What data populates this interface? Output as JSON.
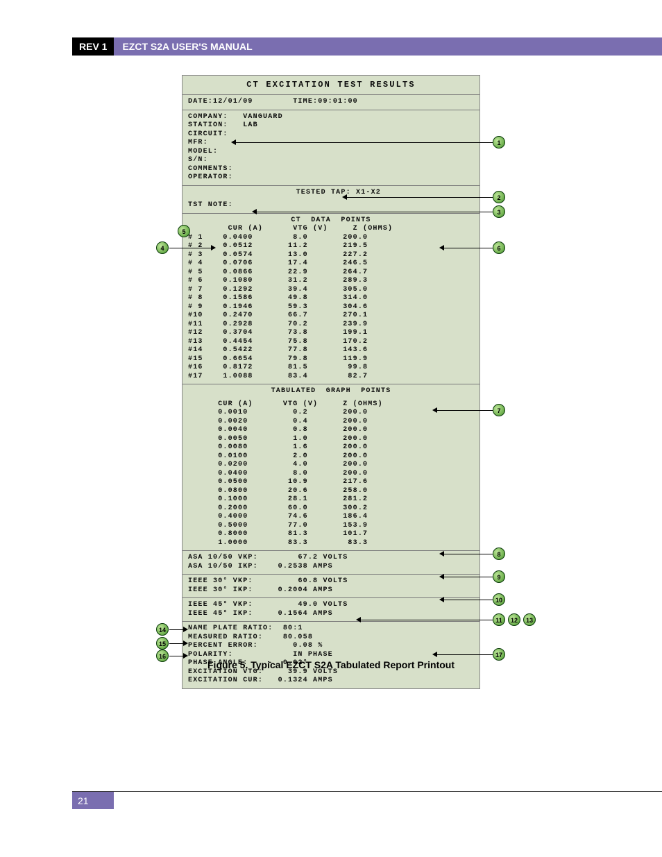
{
  "header": {
    "rev": "REV 1",
    "title": "EZCT S2A USER'S MANUAL"
  },
  "page_number": "21",
  "caption": "Figure 5. Typical EZCT S2A Tabulated Report Printout",
  "printout": {
    "title": "CT  EXCITATION  TEST  RESULTS",
    "date_label": "DATE:",
    "date_value": "12/01/09",
    "time_label": "TIME:",
    "time_value": "09:01:00",
    "company_label": "COMPANY:",
    "company_value": "VANGUARD",
    "station_label": "STATION:",
    "station_value": "LAB",
    "circuit_label": "CIRCUIT:",
    "mfr_label": "MFR:",
    "model_label": "MODEL:",
    "sn_label": "S/N:",
    "comments_label": "COMMENTS:",
    "operator_label": "OPERATOR:",
    "tested_tap_label": "TESTED TAP:",
    "tested_tap_value": "X1-X2",
    "tst_note_label": "TST NOTE:",
    "datapoints_header": "CT  DATA  POINTS",
    "col_cur": "CUR (A)",
    "col_vtg": "VTG (V)",
    "col_z": "Z (OHMS)",
    "data_points": [
      {
        "n": "# 1",
        "cur": "0.0400",
        "vtg": "8.0",
        "z": "200.0"
      },
      {
        "n": "# 2",
        "cur": "0.0512",
        "vtg": "11.2",
        "z": "219.5"
      },
      {
        "n": "# 3",
        "cur": "0.0574",
        "vtg": "13.0",
        "z": "227.2"
      },
      {
        "n": "# 4",
        "cur": "0.0706",
        "vtg": "17.4",
        "z": "246.5"
      },
      {
        "n": "# 5",
        "cur": "0.0866",
        "vtg": "22.9",
        "z": "264.7"
      },
      {
        "n": "# 6",
        "cur": "0.1080",
        "vtg": "31.2",
        "z": "289.3"
      },
      {
        "n": "# 7",
        "cur": "0.1292",
        "vtg": "39.4",
        "z": "305.0"
      },
      {
        "n": "# 8",
        "cur": "0.1586",
        "vtg": "49.8",
        "z": "314.0"
      },
      {
        "n": "# 9",
        "cur": "0.1946",
        "vtg": "59.3",
        "z": "304.6"
      },
      {
        "n": "#10",
        "cur": "0.2470",
        "vtg": "66.7",
        "z": "270.1"
      },
      {
        "n": "#11",
        "cur": "0.2928",
        "vtg": "70.2",
        "z": "239.9"
      },
      {
        "n": "#12",
        "cur": "0.3704",
        "vtg": "73.8",
        "z": "199.1"
      },
      {
        "n": "#13",
        "cur": "0.4454",
        "vtg": "75.8",
        "z": "170.2"
      },
      {
        "n": "#14",
        "cur": "0.5422",
        "vtg": "77.8",
        "z": "143.6"
      },
      {
        "n": "#15",
        "cur": "0.6654",
        "vtg": "79.8",
        "z": "119.9"
      },
      {
        "n": "#16",
        "cur": "0.8172",
        "vtg": "81.5",
        "z": "99.8"
      },
      {
        "n": "#17",
        "cur": "1.0088",
        "vtg": "83.4",
        "z": "82.7"
      }
    ],
    "graph_header": "TABULATED  GRAPH  POINTS",
    "graph_points": [
      {
        "cur": "0.0010",
        "vtg": "0.2",
        "z": "200.0"
      },
      {
        "cur": "0.0020",
        "vtg": "0.4",
        "z": "200.0"
      },
      {
        "cur": "0.0040",
        "vtg": "0.8",
        "z": "200.0"
      },
      {
        "cur": "0.0050",
        "vtg": "1.0",
        "z": "200.0"
      },
      {
        "cur": "0.0080",
        "vtg": "1.6",
        "z": "200.0"
      },
      {
        "cur": "0.0100",
        "vtg": "2.0",
        "z": "200.0"
      },
      {
        "cur": "0.0200",
        "vtg": "4.0",
        "z": "200.0"
      },
      {
        "cur": "0.0400",
        "vtg": "8.0",
        "z": "200.0"
      },
      {
        "cur": "0.0500",
        "vtg": "10.9",
        "z": "217.6"
      },
      {
        "cur": "0.0800",
        "vtg": "20.6",
        "z": "258.0"
      },
      {
        "cur": "0.1000",
        "vtg": "28.1",
        "z": "281.2"
      },
      {
        "cur": "0.2000",
        "vtg": "60.0",
        "z": "300.2"
      },
      {
        "cur": "0.4000",
        "vtg": "74.6",
        "z": "186.4"
      },
      {
        "cur": "0.5000",
        "vtg": "77.0",
        "z": "153.9"
      },
      {
        "cur": "0.8000",
        "vtg": "81.3",
        "z": "101.7"
      },
      {
        "cur": "1.0000",
        "vtg": "83.3",
        "z": "83.3"
      }
    ],
    "asa_vkp_label": "ASA 10/50 Vkp:",
    "asa_vkp_value": "67.2 VOLTS",
    "asa_ikp_label": "ASA 10/50 Ikp:",
    "asa_ikp_value": "0.2538 AMPS",
    "ieee30_vkp_label": "IEEE 30° Vkp:",
    "ieee30_vkp_value": "60.8 VOLTS",
    "ieee30_ikp_label": "IEEE 30° Ikp:",
    "ieee30_ikp_value": "0.2004 AMPS",
    "ieee45_vkp_label": "IEEE 45° Vkp:",
    "ieee45_vkp_value": "49.0 VOLTS",
    "ieee45_ikp_label": "IEEE 45° Ikp:",
    "ieee45_ikp_value": "0.1564 AMPS",
    "nameplate_label": "NAME PLATE RATIO:",
    "nameplate_value": "80:1",
    "measured_label": "MEASURED RATIO:",
    "measured_value": "80.058",
    "percent_label": "PERCENT ERROR:",
    "percent_value": "0.08 %",
    "polarity_label": "POLARITY:",
    "polarity_value": "IN PHASE",
    "phase_label": "PHASE ANGLE:",
    "phase_value": "-  0.02°",
    "exc_vtg_label": "EXCITATION VTG:",
    "exc_vtg_value": "39.9 VOLTS",
    "exc_cur_label": "EXCITATION CUR:",
    "exc_cur_value": "0.1324 AMPS"
  },
  "callouts": {
    "1": "1",
    "2": "2",
    "3": "3",
    "4": "4",
    "5": "5",
    "6": "6",
    "7": "7",
    "8": "8",
    "9": "9",
    "10": "10",
    "11": "11",
    "12": "12",
    "13": "13",
    "14": "14",
    "15": "15",
    "16": "16",
    "17": "17"
  }
}
